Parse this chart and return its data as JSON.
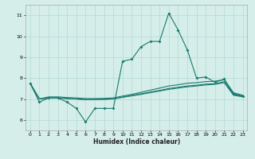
{
  "xlabel": "Humidex (Indice chaleur)",
  "bg_color": "#d5eeea",
  "grid_color": "#b8ddd8",
  "line_color": "#1a7a6e",
  "xlim": [
    -0.5,
    23.5
  ],
  "ylim": [
    5.5,
    11.5
  ],
  "yticks": [
    6,
    7,
    8,
    9,
    10,
    11
  ],
  "xticks": [
    0,
    1,
    2,
    3,
    4,
    5,
    6,
    7,
    8,
    9,
    10,
    11,
    12,
    13,
    14,
    15,
    16,
    17,
    18,
    19,
    20,
    21,
    22,
    23
  ],
  "s1_x": [
    0,
    1,
    2,
    3,
    4,
    5,
    6,
    7,
    8,
    9,
    10,
    11,
    12,
    13,
    14,
    15,
    16,
    17,
    18,
    19,
    20,
    21,
    22,
    23
  ],
  "s1_y": [
    7.75,
    6.85,
    7.05,
    7.05,
    6.85,
    6.55,
    5.9,
    6.55,
    6.55,
    6.55,
    8.8,
    8.9,
    9.5,
    9.75,
    9.75,
    11.1,
    10.3,
    9.35,
    8.0,
    8.05,
    7.8,
    7.95,
    7.25,
    7.15
  ],
  "s2_x": [
    0,
    1,
    2,
    3,
    4,
    5,
    6,
    7,
    8,
    9,
    10,
    11,
    12,
    13,
    14,
    15,
    16,
    17,
    18,
    19,
    20,
    21,
    22,
    23
  ],
  "s2_y": [
    7.75,
    7.0,
    7.05,
    7.05,
    7.02,
    7.0,
    6.97,
    6.97,
    6.98,
    7.0,
    7.08,
    7.15,
    7.22,
    7.3,
    7.38,
    7.46,
    7.52,
    7.58,
    7.62,
    7.67,
    7.7,
    7.78,
    7.18,
    7.1
  ],
  "s3_x": [
    0,
    1,
    2,
    3,
    4,
    5,
    6,
    7,
    8,
    9,
    10,
    11,
    12,
    13,
    14,
    15,
    16,
    17,
    18,
    19,
    20,
    21,
    22,
    23
  ],
  "s3_y": [
    7.75,
    7.0,
    7.1,
    7.1,
    7.07,
    7.05,
    7.02,
    7.02,
    7.03,
    7.05,
    7.14,
    7.22,
    7.32,
    7.42,
    7.52,
    7.62,
    7.68,
    7.75,
    7.78,
    7.83,
    7.85,
    7.92,
    7.3,
    7.18
  ],
  "s4_x": [
    0,
    1,
    2,
    3,
    4,
    5,
    6,
    7,
    8,
    9,
    10,
    11,
    12,
    13,
    14,
    15,
    16,
    17,
    18,
    19,
    20,
    21,
    22,
    23
  ],
  "s4_y": [
    7.75,
    7.0,
    7.05,
    7.05,
    7.02,
    7.0,
    6.97,
    6.98,
    6.99,
    7.01,
    7.09,
    7.17,
    7.25,
    7.33,
    7.41,
    7.5,
    7.56,
    7.62,
    7.66,
    7.71,
    7.73,
    7.83,
    7.22,
    7.12
  ]
}
